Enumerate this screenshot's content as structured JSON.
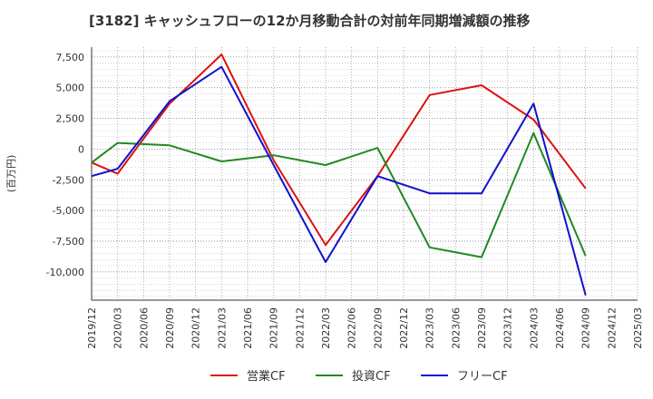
{
  "chart_data": {
    "type": "line",
    "title": "[3182]  キャッシュフローの12か月移動合計の対前年同期増減額の推移",
    "ylabel": "(百万円)",
    "xlabel": "",
    "ylim": [
      -12300,
      8300
    ],
    "y_ticks": [
      7500,
      5000,
      2500,
      0,
      -2500,
      -5000,
      -7500,
      -10000
    ],
    "y_tick_labels": [
      "7,500",
      "5,000",
      "2,500",
      "0",
      "-2,500",
      "-5,000",
      "-7,500",
      "-10,000"
    ],
    "categories": [
      "2019/12",
      "2020/03",
      "2020/06",
      "2020/09",
      "2020/12",
      "2021/03",
      "2021/06",
      "2021/09",
      "2021/12",
      "2022/03",
      "2022/06",
      "2022/09",
      "2022/12",
      "2023/03",
      "2023/06",
      "2023/09",
      "2023/12",
      "2024/03",
      "2024/06",
      "2024/09",
      "2024/12",
      "2025/03"
    ],
    "grid": true,
    "legend_position": "bottom",
    "series": [
      {
        "name": "営業CF",
        "color": "#dd1111",
        "points": [
          [
            0,
            -1100
          ],
          [
            1,
            -2000
          ],
          [
            3,
            3700
          ],
          [
            5,
            7700
          ],
          [
            7,
            -900
          ],
          [
            9,
            -7800
          ],
          [
            11,
            -2200
          ],
          [
            13,
            4400
          ],
          [
            15,
            5200
          ],
          [
            17,
            2400
          ],
          [
            19,
            -3200
          ]
        ]
      },
      {
        "name": "投資CF",
        "color": "#228822",
        "points": [
          [
            0,
            -1100
          ],
          [
            1,
            500
          ],
          [
            3,
            300
          ],
          [
            5,
            -1000
          ],
          [
            7,
            -500
          ],
          [
            9,
            -1300
          ],
          [
            11,
            100
          ],
          [
            13,
            -8000
          ],
          [
            15,
            -8800
          ],
          [
            17,
            1300
          ],
          [
            19,
            -8700
          ]
        ]
      },
      {
        "name": "フリーCF",
        "color": "#1111cc",
        "points": [
          [
            0,
            -2200
          ],
          [
            1,
            -1600
          ],
          [
            3,
            3900
          ],
          [
            5,
            6700
          ],
          [
            7,
            -1300
          ],
          [
            9,
            -9200
          ],
          [
            11,
            -2200
          ],
          [
            13,
            -3600
          ],
          [
            15,
            -3600
          ],
          [
            17,
            3700
          ],
          [
            19,
            -11900
          ]
        ]
      }
    ]
  }
}
